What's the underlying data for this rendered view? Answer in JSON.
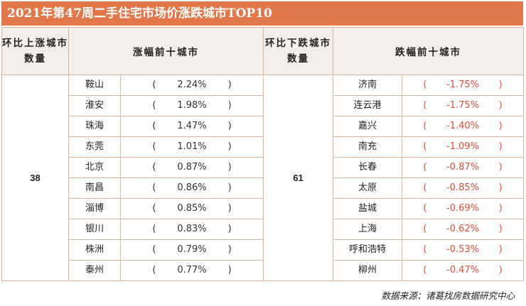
{
  "title": "2021年第47周二手住宅市场价涨跌城市TOP10",
  "headers": {
    "up_count": "环比上涨城市数量",
    "up_top": "涨幅前十城市",
    "down_count": "环比下跌城市数量",
    "down_top": "跌幅前十城市"
  },
  "up_count": "38",
  "down_count": "61",
  "rows": [
    {
      "up_city": "鞍山",
      "up_pct": "2.24%",
      "down_city": "济南",
      "down_pct": "-1.75%"
    },
    {
      "up_city": "淮安",
      "up_pct": "1.98%",
      "down_city": "连云港",
      "down_pct": "-1.75%"
    },
    {
      "up_city": "珠海",
      "up_pct": "1.47%",
      "down_city": "嘉兴",
      "down_pct": "-1.40%"
    },
    {
      "up_city": "东莞",
      "up_pct": "1.01%",
      "down_city": "南充",
      "down_pct": "-1.09%"
    },
    {
      "up_city": "北京",
      "up_pct": "0.87%",
      "down_city": "长春",
      "down_pct": "-0.87%"
    },
    {
      "up_city": "南昌",
      "up_pct": "0.86%",
      "down_city": "太原",
      "down_pct": "-0.85%"
    },
    {
      "up_city": "淄博",
      "up_pct": "0.85%",
      "down_city": "盐城",
      "down_pct": "-0.69%"
    },
    {
      "up_city": "银川",
      "up_pct": "0.83%",
      "down_city": "上海",
      "down_pct": "-0.62%"
    },
    {
      "up_city": "株洲",
      "up_pct": "0.79%",
      "down_city": "呼和浩特",
      "down_pct": "-0.53%"
    },
    {
      "up_city": "泰州",
      "up_pct": "0.77%",
      "down_city": "柳州",
      "down_pct": "-0.47%"
    }
  ],
  "paren_open": "(",
  "paren_close": ")",
  "source": "数据来源：诸葛找房数据研究中心",
  "colors": {
    "title_bg": "#e4774a",
    "header_bg": "#f3eee9",
    "negative": "#e24c3a",
    "border": "#d9b39a"
  }
}
